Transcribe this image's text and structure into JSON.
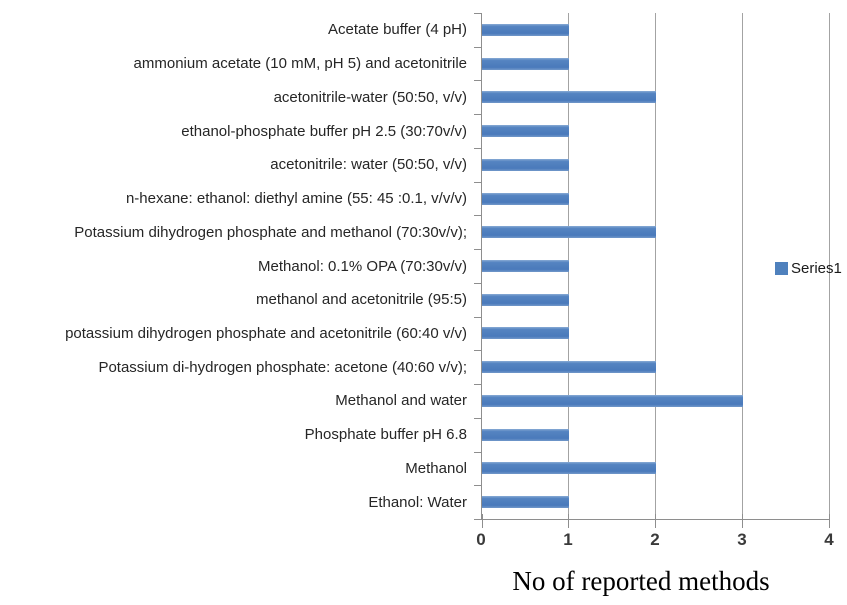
{
  "chart_data": {
    "type": "bar",
    "orientation": "horizontal",
    "title": "",
    "xlabel": "No of reported methods",
    "ylabel": "",
    "categories": [
      "Acetate buffer (4 pH)",
      "ammonium acetate (10 mM, pH 5) and acetonitrile",
      "acetonitrile-water (50:50, v/v)",
      "ethanol-phosphate buffer pH 2.5 (30:70v/v)",
      "acetonitrile: water (50:50, v/v)",
      "n-hexane: ethanol: diethyl amine (55: 45 :0.1, v/v/v)",
      "Potassium dihydrogen phosphate and methanol (70:30v/v);",
      "Methanol: 0.1% OPA (70:30v/v)",
      "methanol and acetonitrile (95:5)",
      "potassium dihydrogen phosphate and acetonitrile (60:40 v/v)",
      "Potassium di-hydrogen phosphate: acetone (40:60 v/v);",
      "Methanol and water",
      "Phosphate buffer pH 6.8",
      "Methanol",
      "Ethanol: Water"
    ],
    "series": [
      {
        "name": "Series1",
        "values": [
          1,
          1,
          2,
          1,
          1,
          1,
          2,
          1,
          1,
          1,
          2,
          3,
          1,
          2,
          1
        ]
      }
    ],
    "x_ticks": [
      0,
      1,
      2,
      3,
      4
    ],
    "xlim": [
      0,
      4
    ],
    "grid": "vertical-major-gridlines",
    "legend_position": "right",
    "colors": {
      "bar": "#4f81bd",
      "gridline": "#a3a3a3",
      "axis_line": "#8e8e8e",
      "tick_label": "#3a3a3a",
      "category_label": "#262626",
      "background": "#ffffff"
    }
  }
}
